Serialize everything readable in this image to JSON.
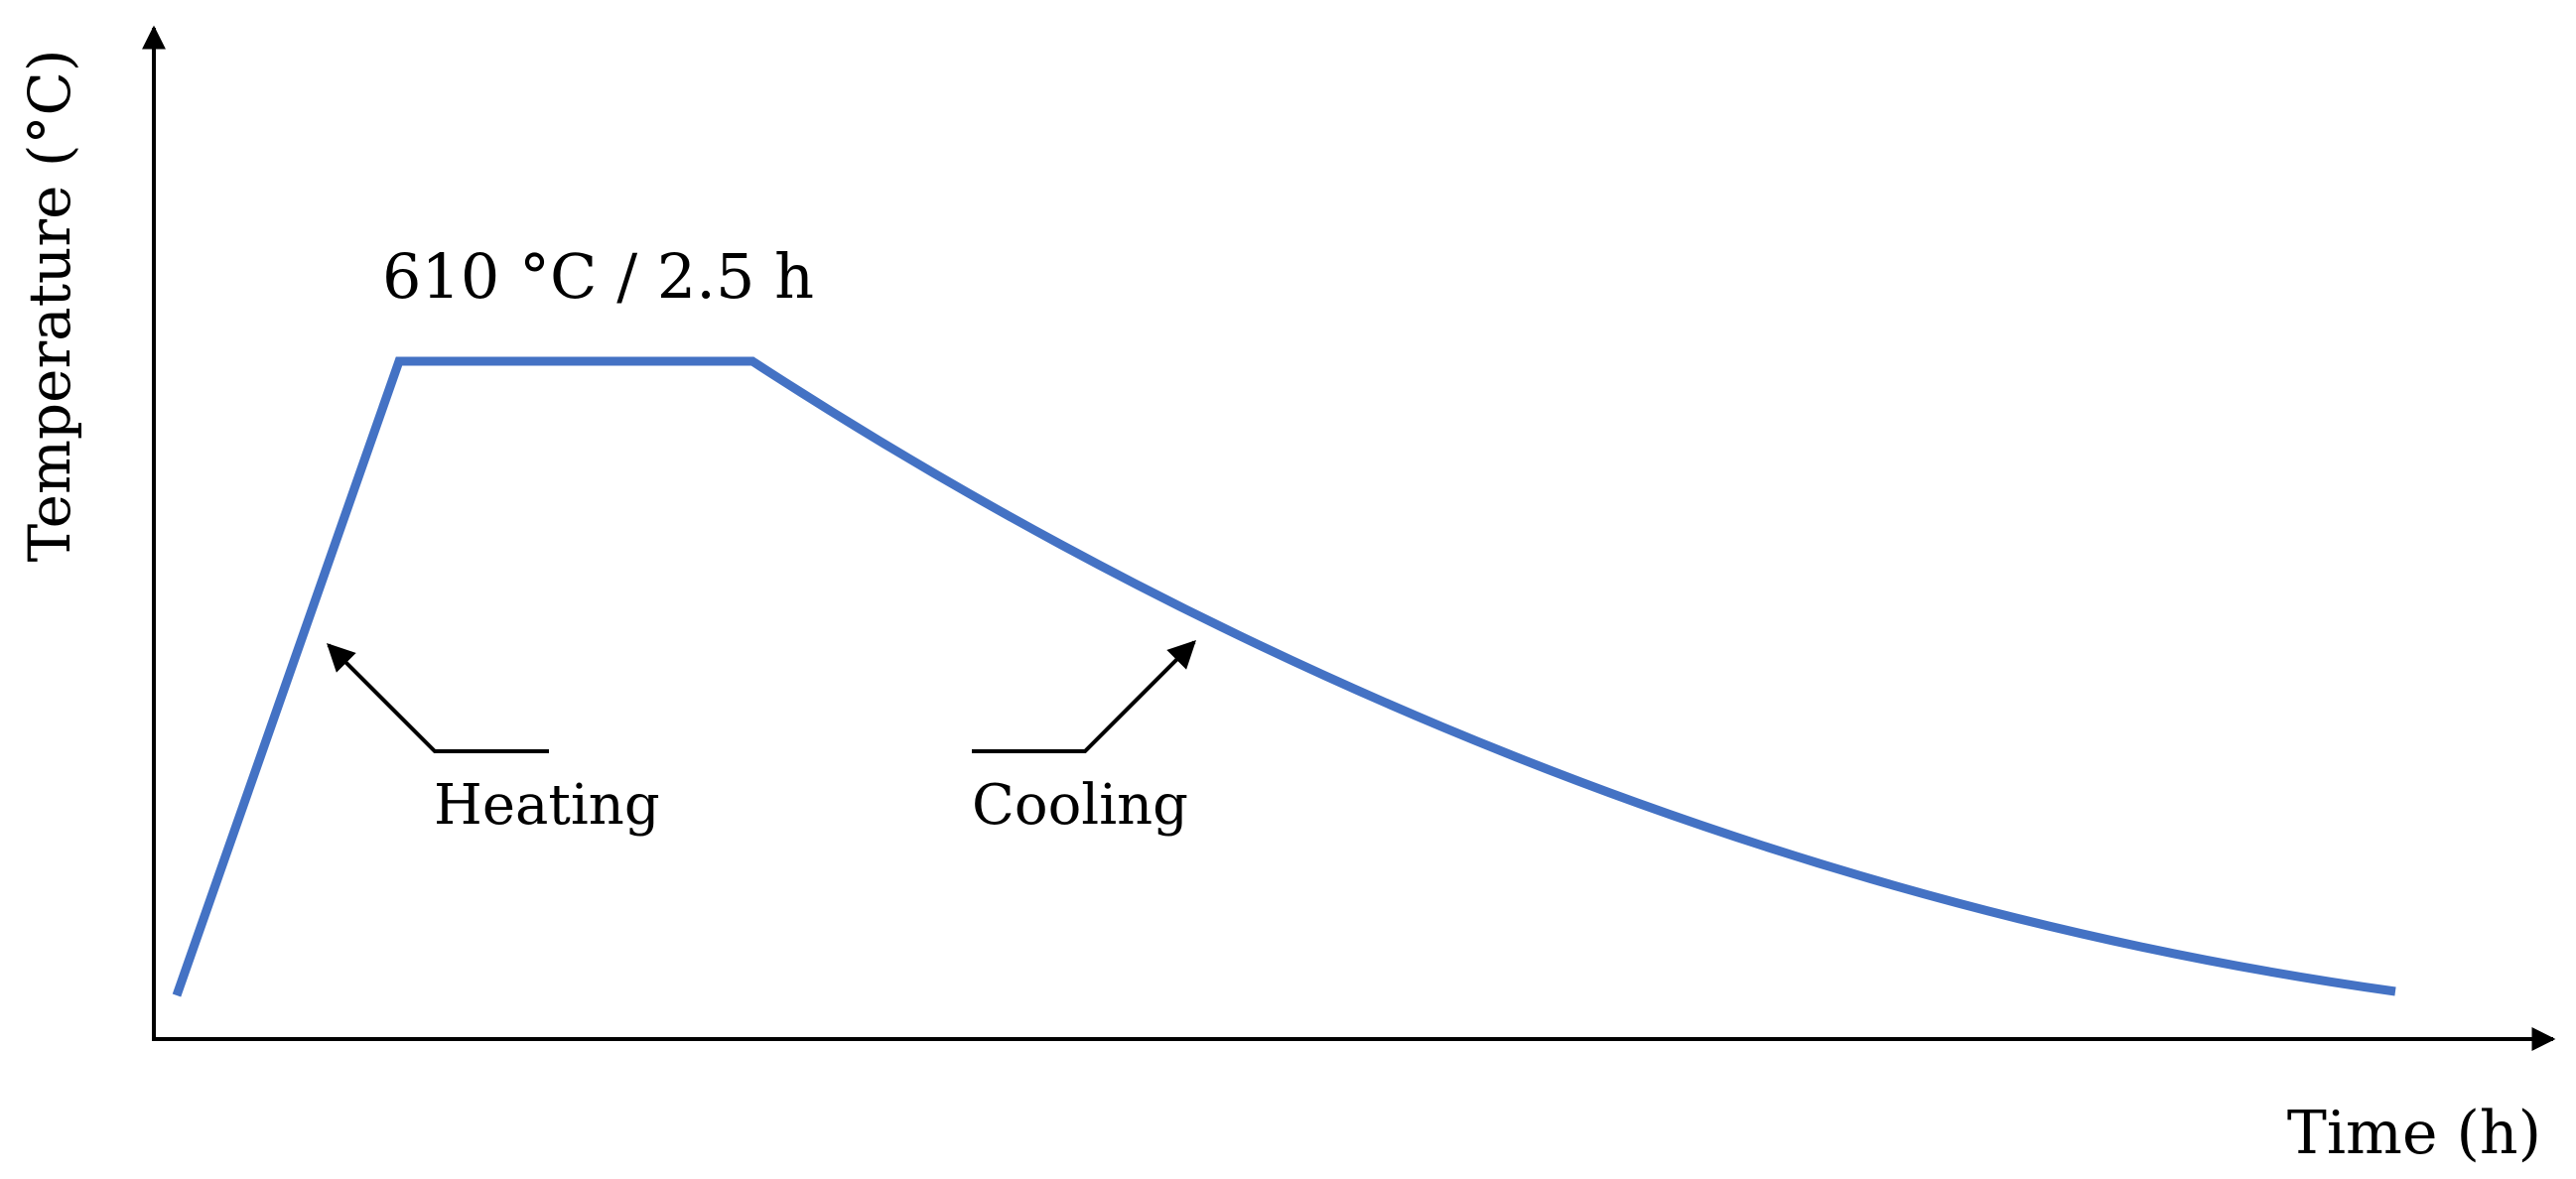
{
  "diagram": {
    "type": "heat-treatment-profile",
    "axes": {
      "x_label": "Time (h)",
      "y_label": "Temperature (°C)"
    },
    "hold_label": "610 °C / 2.5 h",
    "annotations": {
      "heating": "Heating",
      "cooling": "Cooling"
    },
    "colors": {
      "curve": "#4472C4",
      "axes": "#000000",
      "text": "#000000"
    }
  }
}
